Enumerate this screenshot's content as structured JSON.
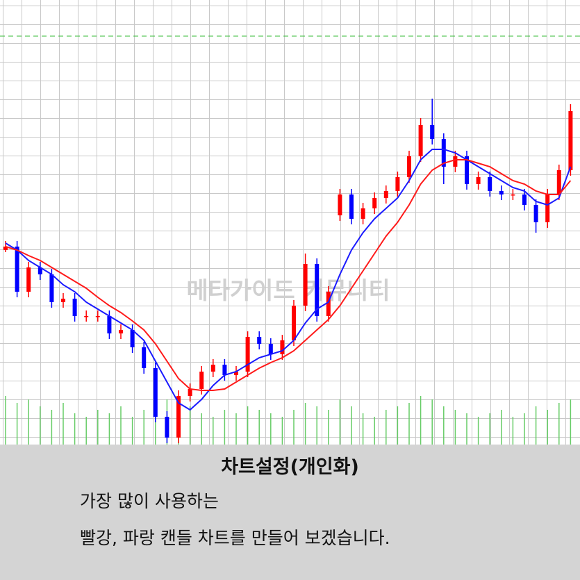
{
  "chart_data": {
    "type": "candlestick",
    "ylim": [
      0,
      640
    ],
    "up_color": "#ff0000",
    "down_color": "#0000ff",
    "open": [
      280,
      285,
      220,
      255,
      245,
      205,
      210,
      185,
      185,
      185,
      160,
      165,
      140,
      110,
      40,
      10,
      70,
      80,
      105,
      115,
      100,
      105,
      155,
      145,
      130,
      150,
      200,
      260,
      185,
      330,
      360,
      325,
      340,
      355,
      365,
      385,
      415,
      460,
      440,
      400,
      415,
      375,
      385,
      365,
      360,
      360,
      345,
      320,
      360,
      395
    ],
    "high": [
      293,
      293,
      263,
      263,
      253,
      218,
      218,
      193,
      193,
      193,
      173,
      173,
      148,
      118,
      48,
      78,
      88,
      113,
      123,
      123,
      113,
      163,
      163,
      153,
      158,
      208,
      275,
      268,
      228,
      368,
      368,
      348,
      363,
      373,
      393,
      423,
      470,
      498,
      448,
      423,
      423,
      393,
      393,
      373,
      368,
      368,
      353,
      368,
      403,
      490
    ],
    "low": [
      277,
      212,
      212,
      237,
      197,
      197,
      177,
      177,
      177,
      152,
      152,
      132,
      102,
      32,
      2,
      2,
      62,
      72,
      97,
      92,
      92,
      97,
      137,
      122,
      122,
      142,
      192,
      177,
      177,
      322,
      317,
      317,
      332,
      347,
      357,
      377,
      407,
      432,
      375,
      392,
      367,
      367,
      357,
      352,
      352,
      337,
      305,
      312,
      352,
      387
    ],
    "close": [
      285,
      220,
      255,
      245,
      205,
      210,
      185,
      185,
      185,
      160,
      165,
      140,
      110,
      40,
      10,
      70,
      80,
      105,
      115,
      100,
      105,
      155,
      145,
      130,
      150,
      200,
      260,
      185,
      220,
      360,
      325,
      340,
      355,
      365,
      385,
      415,
      460,
      440,
      400,
      415,
      375,
      385,
      365,
      360,
      360,
      345,
      320,
      360,
      395,
      480
    ],
    "series": [
      {
        "color": "#1a1aff",
        "values": [
          290,
          280,
          265,
          255,
          245,
          230,
          220,
          205,
          195,
          185,
          175,
          165,
          150,
          120,
          90,
          60,
          50,
          65,
          85,
          100,
          105,
          115,
          125,
          130,
          135,
          150,
          175,
          195,
          205,
          245,
          280,
          305,
          325,
          340,
          355,
          380,
          410,
          425,
          425,
          420,
          410,
          400,
          390,
          380,
          370,
          365,
          350,
          345,
          355,
          400
        ]
      },
      {
        "color": "#ff1a1a",
        "values": [
          285,
          280,
          272,
          265,
          255,
          245,
          235,
          225,
          212,
          200,
          190,
          178,
          165,
          145,
          120,
          95,
          80,
          78,
          78,
          80,
          90,
          100,
          110,
          118,
          125,
          135,
          150,
          165,
          180,
          200,
          225,
          250,
          275,
          300,
          320,
          345,
          375,
          395,
          405,
          410,
          410,
          405,
          400,
          390,
          380,
          375,
          365,
          360,
          360,
          380
        ]
      }
    ],
    "level_line": 588,
    "level_color": "#33bb33",
    "volume": [
      70,
      60,
      65,
      55,
      50,
      60,
      45,
      40,
      50,
      45,
      55,
      40,
      50,
      60,
      65,
      70,
      55,
      45,
      40,
      50,
      45,
      55,
      50,
      45,
      40,
      50,
      60,
      55,
      50,
      65,
      55,
      45,
      40,
      50,
      55,
      60,
      70,
      65,
      55,
      50,
      45,
      40,
      45,
      50,
      40,
      45,
      55,
      50,
      60,
      65
    ],
    "volume_ylim": [
      0,
      100
    ],
    "volume_color": "#66cc66",
    "watermark": "메타가이드 커뮤니티"
  },
  "caption": {
    "title": "차트설정(개인화)",
    "lines": [
      "가장 많이 사용하는",
      "빨강, 파랑 캔들 차트를 만들어 보겠습니다."
    ]
  }
}
